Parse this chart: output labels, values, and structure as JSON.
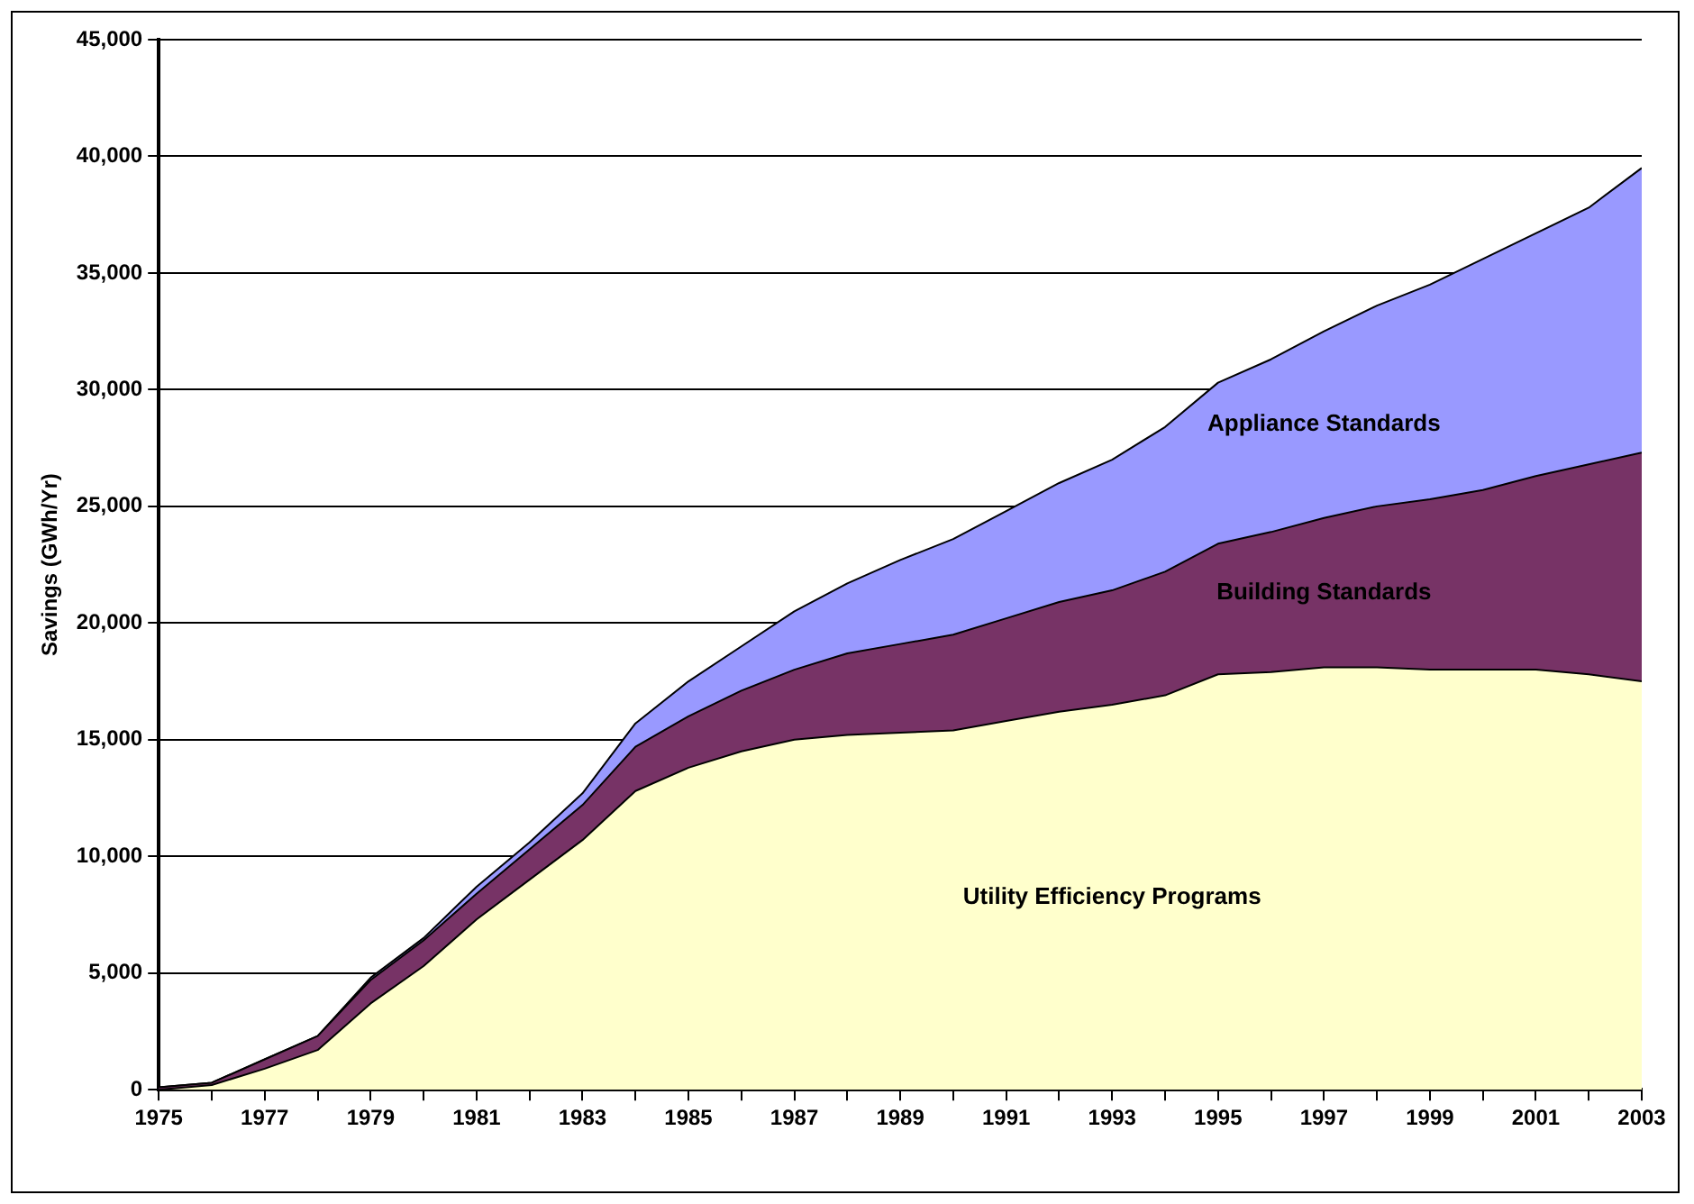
{
  "chart_data": {
    "type": "area",
    "stacked": true,
    "ylabel": "Savings (GWh/Yr)",
    "x": [
      1975,
      1976,
      1977,
      1978,
      1979,
      1980,
      1981,
      1982,
      1983,
      1984,
      1985,
      1986,
      1987,
      1988,
      1989,
      1990,
      1991,
      1992,
      1993,
      1994,
      1995,
      1996,
      1997,
      1998,
      1999,
      2000,
      2001,
      2002,
      2003
    ],
    "series": [
      {
        "name": "Utility Efficiency Programs",
        "color": "#ffffcc",
        "values": [
          0,
          200,
          900,
          1700,
          3700,
          5300,
          7300,
          9000,
          10700,
          12800,
          13800,
          14500,
          15000,
          15200,
          15300,
          15400,
          15800,
          16200,
          16500,
          16900,
          17800,
          17900,
          18100,
          18100,
          18000,
          18000,
          18000,
          17800,
          17500
        ]
      },
      {
        "name": "Building Standards",
        "color": "#773366",
        "values": [
          100,
          100,
          400,
          600,
          1000,
          1100,
          1100,
          1300,
          1500,
          1900,
          2200,
          2600,
          3000,
          3500,
          3800,
          4100,
          4400,
          4700,
          4900,
          5300,
          5600,
          6000,
          6400,
          6900,
          7300,
          7700,
          8300,
          9000,
          9800
        ]
      },
      {
        "name": "Appliance Standards",
        "color": "#9999ff",
        "values": [
          0,
          0,
          0,
          0,
          100,
          100,
          300,
          300,
          500,
          1000,
          1500,
          1900,
          2500,
          3000,
          3600,
          4100,
          4600,
          5100,
          5600,
          6200,
          6900,
          7400,
          8000,
          8600,
          9200,
          9900,
          10400,
          11000,
          12200
        ]
      }
    ],
    "xlim": [
      1975,
      2003
    ],
    "xticks": [
      1975,
      {
        "value": 1976,
        "label": null
      },
      1977,
      {
        "value": 1978,
        "label": null
      },
      1979,
      {
        "value": 1980,
        "label": null
      },
      1981,
      {
        "value": 1982,
        "label": null
      },
      1983,
      {
        "value": 1984,
        "label": null
      },
      1985,
      {
        "value": 1986,
        "label": null
      },
      1987,
      {
        "value": 1988,
        "label": null
      },
      1989,
      {
        "value": 1990,
        "label": null
      },
      1991,
      {
        "value": 1992,
        "label": null
      },
      1993,
      {
        "value": 1994,
        "label": null
      },
      1995,
      {
        "value": 1996,
        "label": null
      },
      1997,
      {
        "value": 1998,
        "label": null
      },
      1999,
      {
        "value": 2000,
        "label": null
      },
      2001,
      {
        "value": 2002,
        "label": null
      },
      2003
    ],
    "ylim": [
      0,
      45000
    ],
    "yticks": [
      {
        "value": 0,
        "label": "0"
      },
      {
        "value": 5000,
        "label": "5,000"
      },
      {
        "value": 10000,
        "label": "10,000"
      },
      {
        "value": 15000,
        "label": "15,000"
      },
      {
        "value": 20000,
        "label": "20,000"
      },
      {
        "value": 25000,
        "label": "25,000"
      },
      {
        "value": 30000,
        "label": "30,000"
      },
      {
        "value": 35000,
        "label": "35,000"
      },
      {
        "value": 40000,
        "label": "40,000"
      },
      {
        "value": 45000,
        "label": "45,000"
      }
    ],
    "grid": "y",
    "legend": false
  }
}
